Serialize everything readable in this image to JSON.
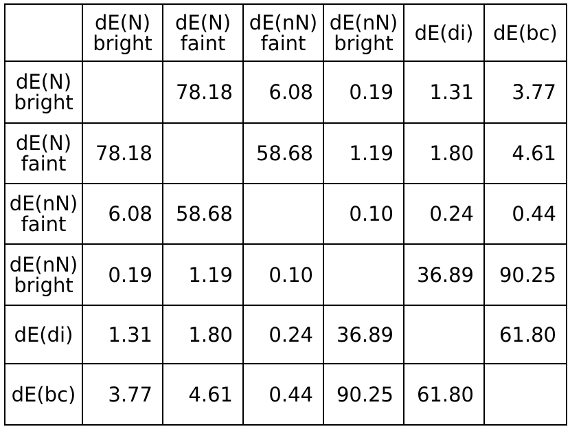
{
  "table": {
    "corner": "",
    "col_headers": [
      "dE(N)\nbright",
      "dE(N)\nfaint",
      "dE(nN)\nfaint",
      "dE(nN)\nbright",
      "dE(di)",
      "dE(bc)"
    ],
    "rows": [
      {
        "header": "dE(N)\nbright",
        "cells": [
          "",
          "78.18",
          "6.08",
          "0.19",
          "1.31",
          "3.77"
        ]
      },
      {
        "header": "dE(N)\nfaint",
        "cells": [
          "78.18",
          "",
          "58.68",
          "1.19",
          "1.80",
          "4.61"
        ]
      },
      {
        "header": "dE(nN)\nfaint",
        "cells": [
          "6.08",
          "58.68",
          "",
          "0.10",
          "0.24",
          "0.44"
        ]
      },
      {
        "header": "dE(nN)\nbright",
        "cells": [
          "0.19",
          "1.19",
          "0.10",
          "",
          "36.89",
          "90.25"
        ]
      },
      {
        "header": "dE(di)",
        "cells": [
          "1.31",
          "1.80",
          "0.24",
          "36.89",
          "",
          "61.80"
        ]
      },
      {
        "header": "dE(bc)",
        "cells": [
          "3.77",
          "4.61",
          "0.44",
          "90.25",
          "61.80",
          ""
        ]
      }
    ]
  }
}
